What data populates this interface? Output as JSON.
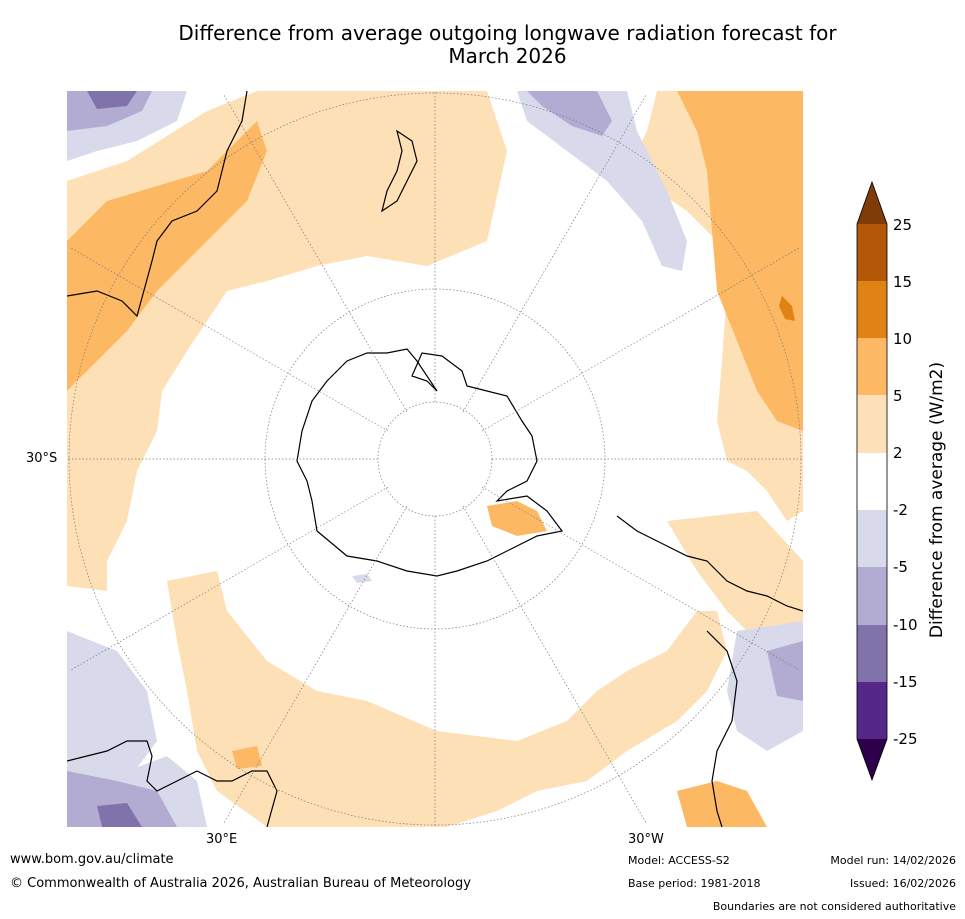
{
  "title": {
    "line1": "Difference from average outgoing longwave radiation forecast for",
    "line2": "March 2026"
  },
  "map": {
    "lat_label": "30°S",
    "lon_labels": {
      "east": "30°E",
      "west": "30°W"
    }
  },
  "colorbar": {
    "title": "Difference from average (W/m2)",
    "ticks": [
      "25",
      "15",
      "10",
      "5",
      "2",
      "-2",
      "-5",
      "-10",
      "-15",
      "-25"
    ],
    "colors": {
      "over": "#7f3b08",
      "b15_25": "#b35806",
      "b10_15": "#e08214",
      "b5_10": "#fdb863",
      "b2_5": "#fee0b6",
      "neutral": "#ffffff",
      "bm5_m2": "#d8daeb",
      "bm10_m5": "#b2abd2",
      "bm15_m10": "#8073ac",
      "bm25_m15": "#542788",
      "under": "#2d004b"
    }
  },
  "footer": {
    "url": "www.bom.gov.au/climate",
    "copyright": "© Commonwealth of Australia 2026, Australian Bureau of Meteorology",
    "model": "Model: ACCESS-S2",
    "base_period": "Base period: 1981-2018",
    "model_run": "Model run: 14/02/2026",
    "issued": "Issued: 16/02/2026",
    "disclaimer": "Boundaries are not considered authoritative"
  }
}
